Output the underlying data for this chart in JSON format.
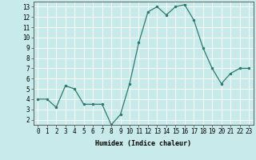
{
  "x": [
    0,
    1,
    2,
    3,
    4,
    5,
    6,
    7,
    8,
    9,
    10,
    11,
    12,
    13,
    14,
    15,
    16,
    17,
    18,
    19,
    20,
    21,
    22,
    23
  ],
  "y": [
    4.0,
    4.0,
    3.2,
    5.3,
    5.0,
    3.5,
    3.5,
    3.5,
    1.5,
    2.5,
    5.5,
    9.5,
    12.5,
    13.0,
    12.2,
    13.0,
    13.2,
    11.7,
    9.0,
    7.0,
    5.5,
    6.5,
    7.0,
    7.0
  ],
  "line_color": "#2d7a6e",
  "marker": "o",
  "marker_size": 1.5,
  "linewidth": 0.9,
  "xlabel": "Humidex (Indice chaleur)",
  "xlabel_fontsize": 6,
  "xlim": [
    -0.5,
    23.5
  ],
  "ylim": [
    1.5,
    13.5
  ],
  "yticks": [
    2,
    3,
    4,
    5,
    6,
    7,
    8,
    9,
    10,
    11,
    12,
    13
  ],
  "xticks": [
    0,
    1,
    2,
    3,
    4,
    5,
    6,
    7,
    8,
    9,
    10,
    11,
    12,
    13,
    14,
    15,
    16,
    17,
    18,
    19,
    20,
    21,
    22,
    23
  ],
  "xtick_labels": [
    "0",
    "1",
    "2",
    "3",
    "4",
    "5",
    "6",
    "7",
    "8",
    "9",
    "10",
    "11",
    "12",
    "13",
    "14",
    "15",
    "16",
    "17",
    "18",
    "19",
    "20",
    "21",
    "22",
    "23"
  ],
  "background_color": "#c8eaea",
  "grid_color": "#ffffff",
  "tick_fontsize": 5.5,
  "figsize": [
    3.2,
    2.0
  ],
  "dpi": 100
}
